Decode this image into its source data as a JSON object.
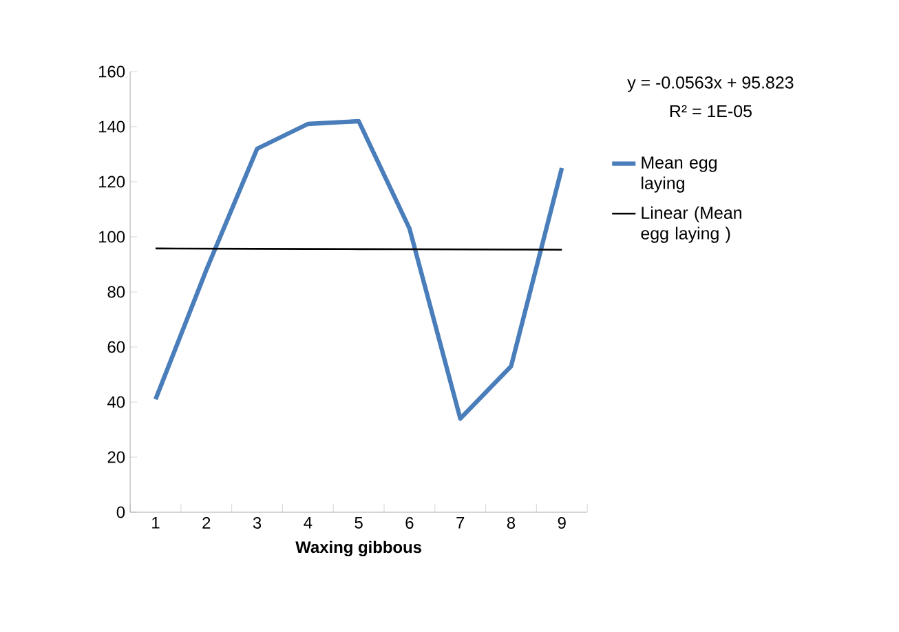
{
  "chart_data": {
    "type": "line",
    "xlabel": "Waxing gibbous",
    "categories": [
      "1",
      "2",
      "3",
      "4",
      "5",
      "6",
      "7",
      "8",
      "9"
    ],
    "series": [
      {
        "name": "Mean egg laying",
        "color": "#4a7ebb",
        "values": [
          41,
          88,
          132,
          141,
          142,
          103,
          34,
          53,
          125
        ]
      },
      {
        "name": "Linear (Mean egg laying )",
        "type": "line",
        "color": "#000000",
        "values": [
          95.77,
          95.71,
          95.65,
          95.6,
          95.54,
          95.49,
          95.43,
          95.37,
          95.32
        ]
      }
    ],
    "ylim": [
      0,
      160
    ],
    "yticks": [
      0,
      20,
      40,
      60,
      80,
      100,
      120,
      140,
      160
    ],
    "annotations": [
      "y = -0.0563x + 95.823",
      "R² = 1E-05"
    ],
    "legend": "right",
    "grid": false,
    "marker": "none"
  }
}
